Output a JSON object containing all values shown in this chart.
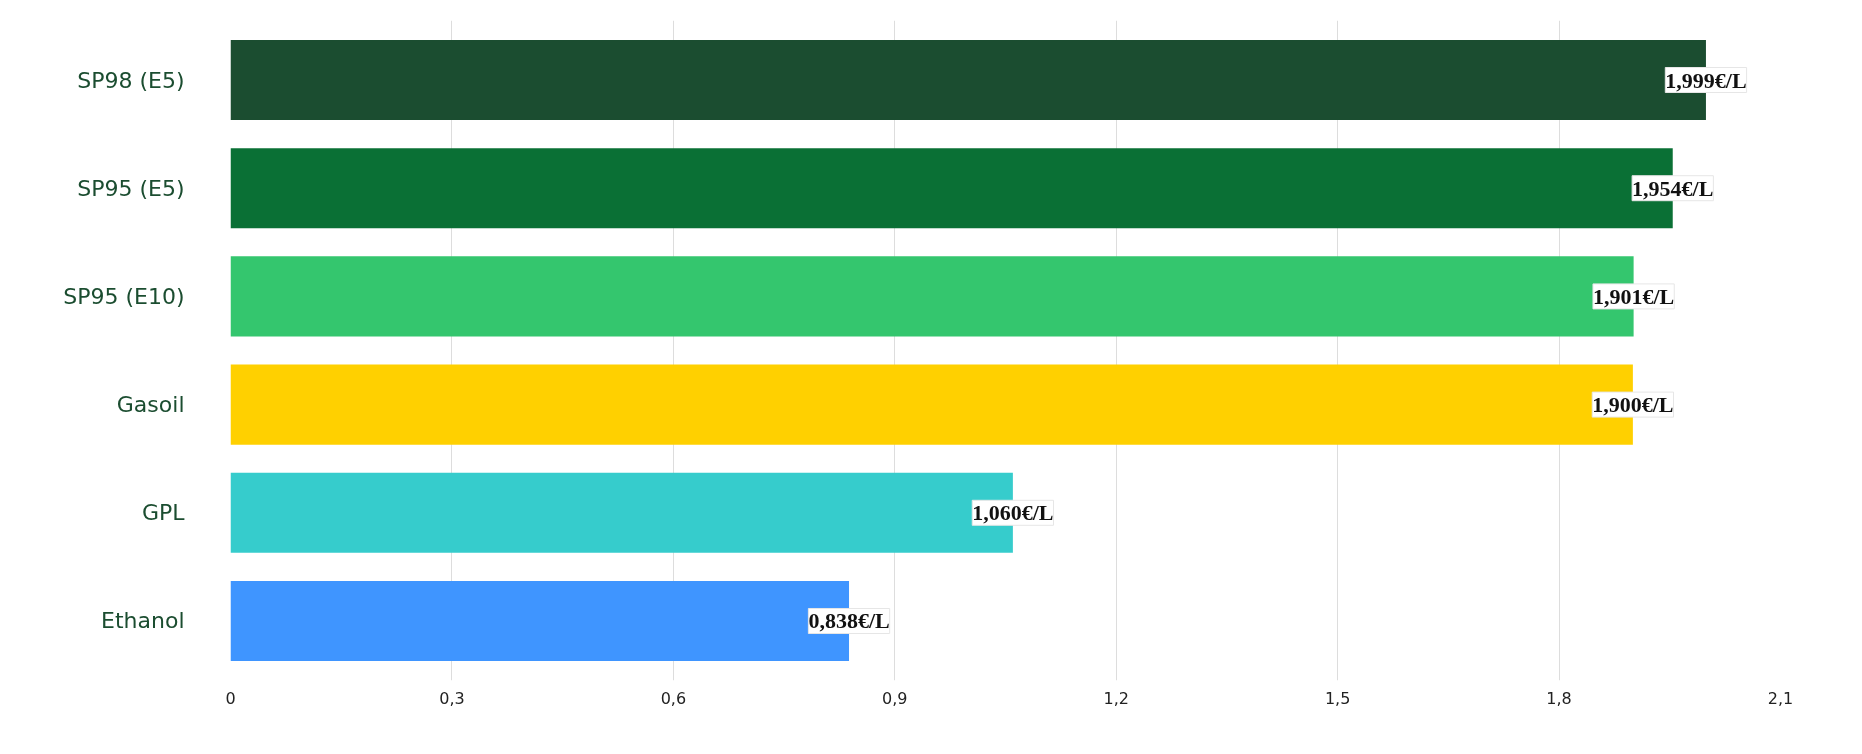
{
  "chart_data": {
    "type": "bar",
    "orientation": "horizontal",
    "categories": [
      "SP98 (E5)",
      "SP95 (E5)",
      "SP95 (E10)",
      "Gasoil",
      "GPL",
      "Ethanol"
    ],
    "values": [
      1.999,
      1.954,
      1.901,
      1.9,
      1.06,
      0.838
    ],
    "colors": [
      "#1b4d30",
      "#0a7035",
      "#34c66e",
      "#ffd000",
      "#36cccc",
      "#3f95ff"
    ],
    "value_labels": [
      "1,999€/L",
      "1,954€/L",
      "1,901€/L",
      "1,900€/L",
      "1,060€/L",
      "0,838€/L"
    ],
    "xlim": [
      0,
      2.1
    ],
    "xticks": [
      0,
      {
        "value": 0.3,
        "label": "0,3"
      },
      {
        "value": 0.6,
        "label": "0,6"
      },
      {
        "value": 0.9,
        "label": "0,9"
      },
      {
        "value": 1.2,
        "label": "1,2"
      },
      {
        "value": 1.5,
        "label": "1,5"
      },
      {
        "value": 1.8,
        "label": "1,8"
      },
      {
        "value": 2.1,
        "label": "2,1"
      }
    ],
    "grid": "x"
  }
}
